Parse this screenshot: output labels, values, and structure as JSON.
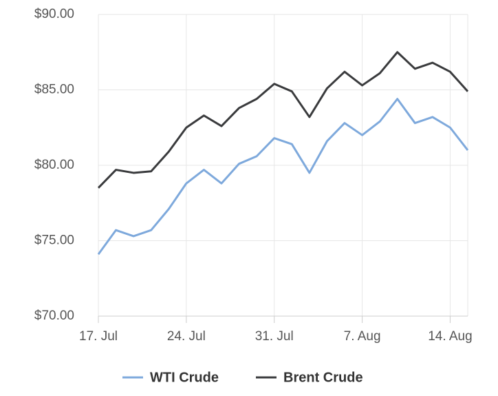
{
  "chart_data": {
    "type": "line",
    "categories": [
      "17. Jul",
      null,
      null,
      null,
      null,
      "24. Jul",
      null,
      null,
      null,
      null,
      "31. Jul",
      null,
      null,
      null,
      null,
      "7. Aug",
      null,
      null,
      null,
      null,
      "14. Aug",
      null
    ],
    "series": [
      {
        "name": "WTI Crude",
        "color": "#7ea9dc",
        "values": [
          74.1,
          75.7,
          75.3,
          75.7,
          77.1,
          78.8,
          79.7,
          78.8,
          80.1,
          80.6,
          81.8,
          81.4,
          79.5,
          81.6,
          82.8,
          82.0,
          82.9,
          84.4,
          82.8,
          83.2,
          82.5,
          81.0
        ]
      },
      {
        "name": "Brent Crude",
        "color": "#3a3b3d",
        "values": [
          78.5,
          79.7,
          79.5,
          79.6,
          80.9,
          82.5,
          83.3,
          82.6,
          83.8,
          84.4,
          85.4,
          84.9,
          83.2,
          85.1,
          86.2,
          85.3,
          86.1,
          87.5,
          86.4,
          86.8,
          86.2,
          84.9
        ]
      }
    ],
    "ylim": [
      70,
      90
    ],
    "yticks": [
      {
        "value": 70,
        "label": "$70.00"
      },
      {
        "value": 75,
        "label": "$75.00"
      },
      {
        "value": 80,
        "label": "$80.00"
      },
      {
        "value": 85,
        "label": "$85.00"
      },
      {
        "value": 90,
        "label": "$90.00"
      }
    ],
    "grid": true,
    "legend": "bottom"
  }
}
